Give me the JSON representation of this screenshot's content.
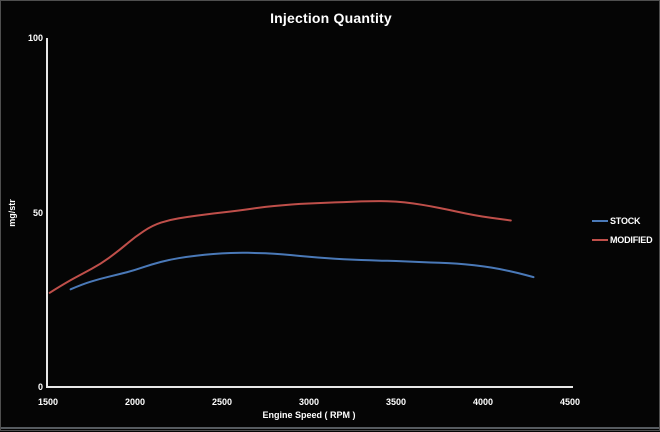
{
  "window": {
    "background": "#050505",
    "border_color": "#4f4f4f",
    "bottom_strip_color": "#565b60"
  },
  "chart_data": {
    "type": "line",
    "title": "Injection Quantity",
    "xlabel": "Engine Speed ( RPM )",
    "ylabel": "mg/str",
    "xlim": [
      1500,
      4500
    ],
    "ylim": [
      0,
      100
    ],
    "x_ticks": [
      1500,
      2000,
      2500,
      3000,
      3500,
      4000,
      4500
    ],
    "y_ticks": [
      0,
      50,
      100
    ],
    "grid": false,
    "legend_position": "right",
    "background": "#050505",
    "axis_color": "#e8e8e8",
    "text_color": "#ffffff",
    "series": [
      {
        "name": "STOCK",
        "color": "#4a79b8",
        "x": [
          1630,
          1700,
          1800,
          1900,
          2000,
          2100,
          2200,
          2300,
          2400,
          2500,
          2600,
          2700,
          2800,
          2900,
          3000,
          3100,
          3200,
          3300,
          3400,
          3500,
          3600,
          3700,
          3800,
          3900,
          4000,
          4100,
          4200,
          4290
        ],
        "values": [
          28,
          29.5,
          31,
          32.2,
          33.5,
          35.2,
          36.5,
          37.3,
          37.9,
          38.3,
          38.5,
          38.4,
          38.2,
          37.8,
          37.3,
          36.9,
          36.6,
          36.4,
          36.2,
          36.1,
          35.9,
          35.7,
          35.5,
          35.2,
          34.6,
          33.8,
          32.7,
          31.5
        ]
      },
      {
        "name": "MODIFIED",
        "color": "#bf4f4a",
        "x": [
          1510,
          1600,
          1700,
          1800,
          1900,
          2000,
          2100,
          2200,
          2300,
          2400,
          2500,
          2600,
          2700,
          2800,
          2900,
          3000,
          3100,
          3200,
          3300,
          3400,
          3500,
          3600,
          3700,
          3800,
          3900,
          4000,
          4100,
          4160
        ],
        "values": [
          27,
          29.8,
          32.5,
          35.2,
          38.8,
          43,
          46.3,
          47.9,
          48.7,
          49.4,
          50,
          50.6,
          51.3,
          51.9,
          52.3,
          52.6,
          52.8,
          53,
          53.2,
          53.3,
          53.2,
          52.6,
          51.8,
          50.8,
          49.7,
          48.8,
          48.1,
          47.7
        ]
      }
    ]
  }
}
